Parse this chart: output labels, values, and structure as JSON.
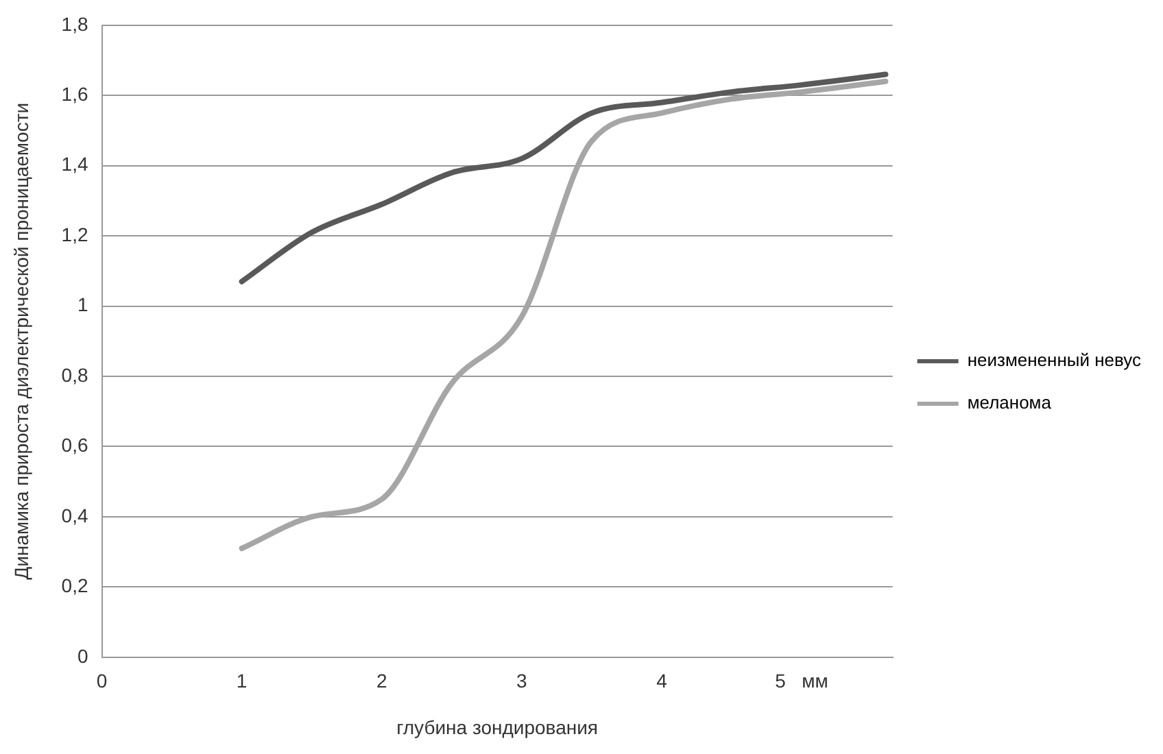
{
  "chart_data": {
    "type": "line",
    "xlabel": "глубина зондирования",
    "ylabel": "Динамика прироста диэлектрической проницаемости",
    "xlim": [
      0,
      5.65
    ],
    "xticks": [
      0,
      1,
      2,
      3,
      4,
      {
        "value": 5,
        "label": "5   мм"
      }
    ],
    "ylim": [
      0,
      1.8
    ],
    "yticks": [
      0,
      {
        "value": 0.2,
        "label": "0,2"
      },
      {
        "value": 0.4,
        "label": "0,4"
      },
      {
        "value": 0.6,
        "label": "0,6"
      },
      {
        "value": 0.8,
        "label": "0,8"
      },
      1,
      {
        "value": 1.2,
        "label": "1,2"
      },
      {
        "value": 1.4,
        "label": "1,4"
      },
      {
        "value": 1.6,
        "label": "1,6"
      },
      {
        "value": 1.8,
        "label": "1,8"
      }
    ],
    "grid": "y",
    "legend": "right",
    "marker": "none",
    "series": [
      {
        "name": "неизмененный невус",
        "color": "#595959",
        "x": [
          1,
          1.5,
          2,
          2.5,
          3,
          3.5,
          4,
          4.5,
          5,
          5.6
        ],
        "values": [
          1.07,
          1.21,
          1.29,
          1.38,
          1.42,
          1.55,
          1.58,
          1.61,
          1.63,
          1.66
        ]
      },
      {
        "name": "меланома",
        "color": "#a6a6a6",
        "x": [
          1,
          1.5,
          2,
          2.5,
          3,
          3.5,
          4,
          4.5,
          5,
          5.6
        ],
        "values": [
          0.31,
          0.4,
          0.45,
          0.78,
          0.97,
          1.47,
          1.55,
          1.59,
          1.61,
          1.64
        ]
      }
    ]
  }
}
